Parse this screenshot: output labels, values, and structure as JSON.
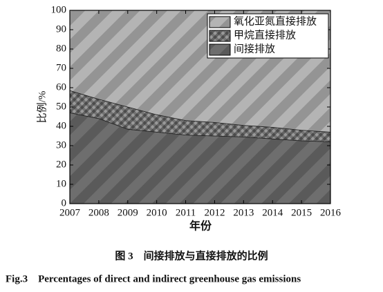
{
  "chart_data": {
    "type": "stacked_area",
    "x": [
      2007,
      2008,
      2009,
      2010,
      2011,
      2012,
      2013,
      2014,
      2015,
      2016
    ],
    "xlim": [
      2007,
      2016
    ],
    "xticks": [
      2007,
      2008,
      2009,
      2010,
      2011,
      2012,
      2013,
      2014,
      2015,
      2016
    ],
    "ylim": [
      0,
      100
    ],
    "yticks": [
      0,
      10,
      20,
      30,
      40,
      50,
      60,
      70,
      80,
      90,
      100
    ],
    "x_label": "年份",
    "y_label": "比例/%",
    "legend": "upper right",
    "series": [
      {
        "name": "间接排放",
        "color": "#6e6e6e",
        "values": [
          47,
          44,
          38.5,
          37,
          35.5,
          35,
          34.5,
          33.5,
          32.5,
          32
        ]
      },
      {
        "name": "甲烷直接排放",
        "color": "#9a9a9a",
        "values": [
          11.5,
          10,
          11.5,
          9,
          7.5,
          7,
          6,
          6,
          5.5,
          5
        ]
      },
      {
        "name": "氧化亚氮直接排放",
        "color": "#b4b4b4",
        "values": [
          41.5,
          46,
          50,
          54,
          57,
          58,
          59.5,
          60.5,
          62,
          63
        ]
      }
    ],
    "caption_cn": "图 3　间接排放与直接排放的比例",
    "caption_en": "Fig.3　Percentages of direct and indirect greenhouse gas emissions"
  }
}
